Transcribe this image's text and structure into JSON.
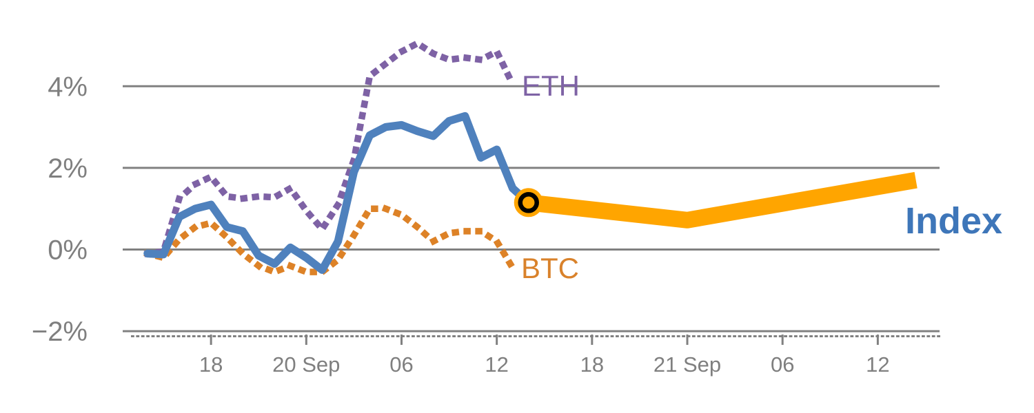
{
  "labels": {
    "eth": "ETH",
    "btc": "BTC",
    "index": "Index",
    "eth_color": "#7E62A5",
    "btc_color": "#D9822B",
    "index_color": "#3E76B9"
  },
  "chart_data": {
    "type": "line",
    "title": "",
    "xlabel": "",
    "ylabel": "",
    "legend_position": "inline-right-of-series",
    "grid": true,
    "colors": {
      "grid": "#808080",
      "axis_text": "#7F7F7F",
      "index_line": "#4F81BD",
      "eth_line": "#7E62A5",
      "btc_line": "#DD8227",
      "forecast_line": "#FFA500",
      "marker_ring": "#000000"
    },
    "y_axis": {
      "unit": "%",
      "ticks": [
        4,
        2,
        0,
        -2
      ],
      "tick_labels": [
        "4%",
        "2%",
        "0%",
        "−2%"
      ],
      "range": [
        -2.5,
        5.6
      ]
    },
    "x_axis": {
      "tick_labels": [
        "18",
        "20 Sep",
        "06",
        "12",
        "18",
        "21 Sep",
        "06",
        "12"
      ],
      "tick_hours": [
        4,
        10,
        16,
        22,
        28,
        34,
        40,
        46
      ],
      "minor_tick_baseline": true,
      "hours_span": [
        0,
        48.4
      ]
    },
    "series": [
      {
        "name": "BTC",
        "style": "dotted",
        "color": "#DD8227",
        "start_hour": 0,
        "step_hours": 1,
        "values": [
          -0.1,
          -0.2,
          0.25,
          0.55,
          0.65,
          0.3,
          -0.1,
          -0.4,
          -0.55,
          -0.4,
          -0.55,
          -0.55,
          -0.25,
          0.35,
          1.0,
          1.0,
          0.85,
          0.55,
          0.2,
          0.4,
          0.45,
          0.45,
          0.2,
          -0.45
        ]
      },
      {
        "name": "ETH",
        "style": "dotted",
        "color": "#7E62A5",
        "start_hour": 0,
        "step_hours": 1,
        "values": [
          -0.1,
          -0.05,
          1.25,
          1.6,
          1.78,
          1.3,
          1.25,
          1.3,
          1.28,
          1.5,
          0.95,
          0.5,
          1.1,
          2.2,
          4.25,
          4.55,
          4.85,
          5.05,
          4.8,
          4.65,
          4.7,
          4.65,
          4.85,
          4.05
        ]
      },
      {
        "name": "Index",
        "style": "solid",
        "color": "#4F81BD",
        "start_hour": 0,
        "step_hours": 1,
        "values": [
          -0.1,
          -0.12,
          0.8,
          1.0,
          1.1,
          0.55,
          0.45,
          -0.15,
          -0.35,
          0.05,
          -0.2,
          -0.5,
          0.2,
          1.9,
          2.8,
          3.0,
          3.05,
          2.9,
          2.78,
          3.15,
          3.27,
          2.25,
          2.45,
          1.5,
          1.15
        ]
      },
      {
        "name": "Index forecast",
        "style": "solid",
        "thick": true,
        "color": "#FFA500",
        "points": [
          {
            "hour": 24,
            "value": 1.15
          },
          {
            "hour": 34,
            "value": 0.72
          },
          {
            "hour": 48.4,
            "value": 1.7
          }
        ]
      }
    ],
    "marker": {
      "hour": 24,
      "value": 1.15,
      "fill": "#FFA500",
      "ring_color": "#000000"
    }
  }
}
